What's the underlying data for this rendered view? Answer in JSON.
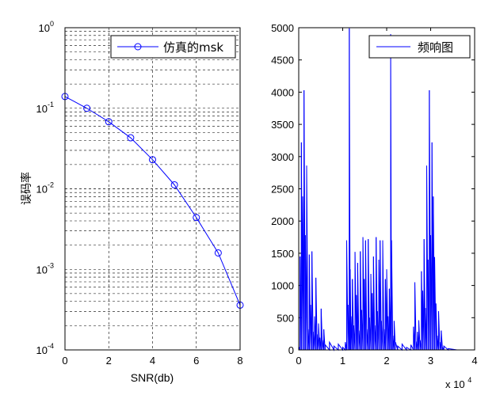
{
  "chart_data": [
    {
      "type": "line",
      "yscale": "log",
      "xlabel": "SNR(db)",
      "ylabel": "误码率",
      "xlim": [
        0,
        8
      ],
      "ylim": [
        0.0001,
        1
      ],
      "x_ticks": [
        "0",
        "2",
        "4",
        "6",
        "8"
      ],
      "y_tick_base": "10",
      "y_tick_exponents": [
        "0",
        "-1",
        "-2",
        "-3",
        "-4"
      ],
      "grid": true,
      "legend": "top-right",
      "series": [
        {
          "name": "仿真的msk",
          "color": "#0000ff",
          "marker": "circle",
          "x": [
            0,
            1,
            2,
            3,
            4,
            5,
            6,
            7,
            8
          ],
          "values": [
            0.14,
            0.1,
            0.068,
            0.043,
            0.023,
            0.0112,
            0.0044,
            0.0016,
            0.00036
          ]
        }
      ]
    },
    {
      "type": "line",
      "xlim": [
        0,
        40000
      ],
      "ylim": [
        0,
        5000
      ],
      "x_ticks": [
        "0",
        "1",
        "2",
        "3",
        "4"
      ],
      "x_multiplier_base": "x 10",
      "x_multiplier_exp": "4",
      "y_ticks": [
        "0",
        "500",
        "1000",
        "1500",
        "2000",
        "2500",
        "3000",
        "3500",
        "4000",
        "4500",
        "5000"
      ],
      "grid": false,
      "legend": "top-right",
      "series": [
        {
          "name": "频响图",
          "color": "#0000ff",
          "x": [
            0,
            300,
            600,
            900,
            1200,
            1500,
            1800,
            2100,
            2400,
            2700,
            3000,
            3300,
            3600,
            3900,
            4200,
            4500,
            4800,
            5100,
            5400,
            5700,
            6000,
            7000,
            8000,
            9000,
            10000,
            10600,
            10900,
            11200,
            11500,
            11700,
            11900,
            12200,
            12500,
            12800,
            13100,
            13400,
            13700,
            14000,
            14300,
            14600,
            14900,
            15200,
            15500,
            15800,
            16100,
            16400,
            16700,
            17000,
            17300,
            17600,
            17900,
            18200,
            18500,
            18800,
            19100,
            19400,
            19700,
            20000,
            20300,
            20600,
            20900,
            21100,
            21400,
            21700,
            22000,
            22500,
            23500,
            24500,
            25500,
            26100,
            26400,
            26700,
            27000,
            27300,
            27600,
            27900,
            28200,
            28500,
            28800,
            29100,
            29400,
            29700,
            30000,
            30300,
            30600,
            30900,
            31200,
            31500,
            31800,
            32100,
            32400,
            32700,
            33000,
            34000,
            36000,
            40000
          ],
          "values": [
            50,
            1450,
            3220,
            2380,
            4030,
            1780,
            2860,
            320,
            1480,
            700,
            1530,
            280,
            520,
            1120,
            240,
            410,
            190,
            640,
            150,
            320,
            80,
            120,
            60,
            90,
            40,
            120,
            1700,
            700,
            4990,
            1250,
            520,
            1100,
            380,
            1520,
            850,
            1350,
            300,
            1530,
            620,
            1750,
            1100,
            1700,
            320,
            1720,
            500,
            1180,
            880,
            1450,
            380,
            1750,
            600,
            1400,
            1700,
            450,
            1700,
            320,
            1100,
            1250,
            520,
            950,
            4900,
            1700,
            220,
            450,
            120,
            60,
            90,
            40,
            80,
            360,
            1050,
            130,
            280,
            460,
            150,
            1220,
            920,
            1720,
            650,
            2860,
            1400,
            4030,
            1780,
            3220,
            2380,
            1440,
            720,
            220,
            600,
            120,
            300,
            40,
            60,
            20,
            0,
            0
          ]
        }
      ]
    }
  ]
}
